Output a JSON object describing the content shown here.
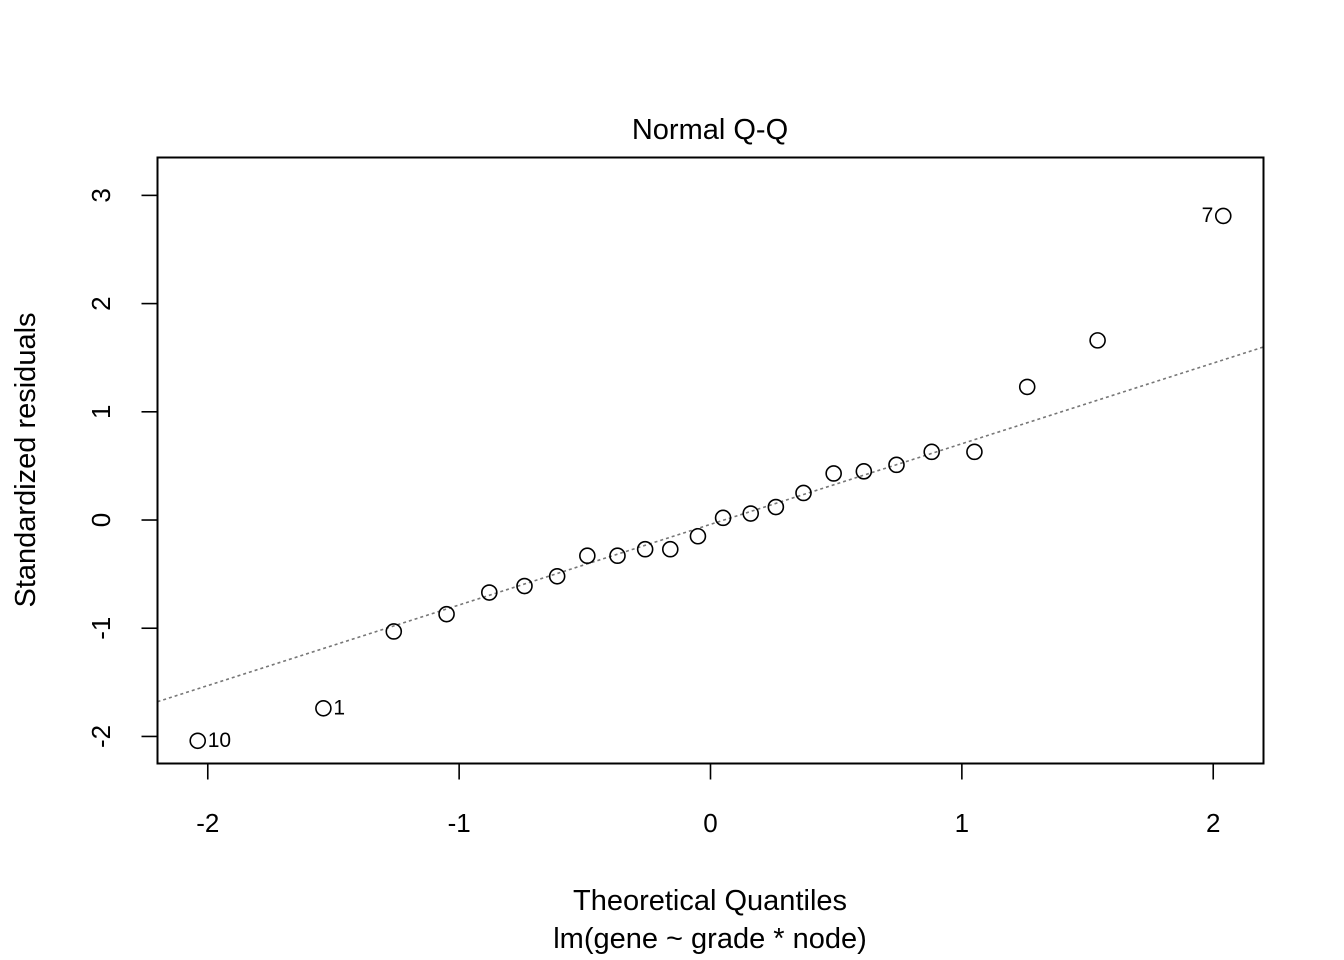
{
  "chart_data": {
    "type": "scatter",
    "title": "Normal Q-Q",
    "xlabel": "Theoretical Quantiles",
    "sublabel": "lm(gene ~ grade * node)",
    "ylabel": "Standardized residuals",
    "xlim": [
      -2.2,
      2.2
    ],
    "ylim": [
      -2.25,
      3.35
    ],
    "x_ticks": [
      -2,
      -1,
      0,
      1,
      2
    ],
    "y_ticks": [
      -2,
      -1,
      0,
      1,
      2,
      3
    ],
    "grid": false,
    "points": [
      {
        "x": -2.04,
        "y": -2.04,
        "label": "10"
      },
      {
        "x": -1.54,
        "y": -1.74,
        "label": "1"
      },
      {
        "x": -1.26,
        "y": -1.03
      },
      {
        "x": -1.05,
        "y": -0.87
      },
      {
        "x": -0.88,
        "y": -0.67
      },
      {
        "x": -0.74,
        "y": -0.61
      },
      {
        "x": -0.61,
        "y": -0.52
      },
      {
        "x": -0.49,
        "y": -0.33
      },
      {
        "x": -0.37,
        "y": -0.33
      },
      {
        "x": -0.26,
        "y": -0.27
      },
      {
        "x": -0.16,
        "y": -0.27
      },
      {
        "x": -0.05,
        "y": -0.15
      },
      {
        "x": 0.05,
        "y": 0.02
      },
      {
        "x": 0.16,
        "y": 0.06
      },
      {
        "x": 0.26,
        "y": 0.12
      },
      {
        "x": 0.37,
        "y": 0.25
      },
      {
        "x": 0.49,
        "y": 0.43
      },
      {
        "x": 0.61,
        "y": 0.45
      },
      {
        "x": 0.74,
        "y": 0.51
      },
      {
        "x": 0.88,
        "y": 0.63
      },
      {
        "x": 1.05,
        "y": 0.63
      },
      {
        "x": 1.26,
        "y": 1.23
      },
      {
        "x": 1.54,
        "y": 1.66
      },
      {
        "x": 2.04,
        "y": 2.81,
        "label": "7"
      }
    ],
    "reference_line": {
      "slope": 0.745,
      "intercept": -0.04,
      "style": "dotted",
      "color": "#777777"
    }
  }
}
